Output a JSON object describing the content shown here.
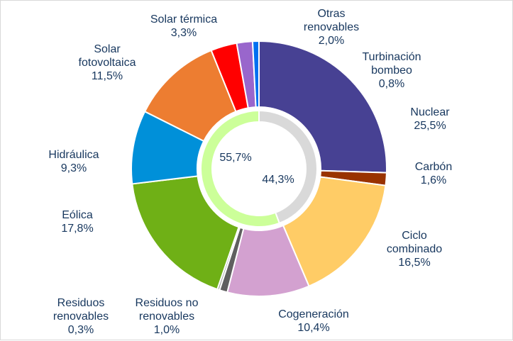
{
  "chart_data": [
    {
      "type": "pie",
      "style": "donut",
      "slices": [
        {
          "label_lines": [
            "Nuclear"
          ],
          "value": 25.5,
          "value_text": "25,5%",
          "color": "#474193"
        },
        {
          "label_lines": [
            "Carbón"
          ],
          "value": 1.6,
          "value_text": "1,6%",
          "color": "#993300"
        },
        {
          "label_lines": [
            "Ciclo",
            "combinado"
          ],
          "value": 16.5,
          "value_text": "16,5%",
          "color": "#ffcc66"
        },
        {
          "label_lines": [
            "Cogeneración"
          ],
          "value": 10.4,
          "value_text": "10,4%",
          "color": "#d3a1d0"
        },
        {
          "label_lines": [
            "Residuos no",
            "renovables"
          ],
          "value": 1.0,
          "value_text": "1,0%",
          "color": "#5f5f5f"
        },
        {
          "label_lines": [
            "Residuos",
            "renovables"
          ],
          "value": 0.3,
          "value_text": "0,3%",
          "color": "#a6a6a6"
        },
        {
          "label_lines": [
            "Eólica"
          ],
          "value": 17.8,
          "value_text": "17,8%",
          "color": "#6fb016"
        },
        {
          "label_lines": [
            "Hidráulica"
          ],
          "value": 9.3,
          "value_text": "9,3%",
          "color": "#0090d9"
        },
        {
          "label_lines": [
            "Solar",
            "fotovoltaica"
          ],
          "value": 11.5,
          "value_text": "11,5%",
          "color": "#ed7d31"
        },
        {
          "label_lines": [
            "Solar térmica"
          ],
          "value": 3.3,
          "value_text": "3,3%",
          "color": "#ff0000"
        },
        {
          "label_lines": [
            "Otras",
            "renovables"
          ],
          "value": 2.0,
          "value_text": "2,0%",
          "color": "#9966cc"
        },
        {
          "label_lines": [
            "Turbinación",
            "bombeo"
          ],
          "value": 0.8,
          "value_text": "0,8%",
          "color": "#0070f0"
        }
      ]
    },
    {
      "type": "pie",
      "style": "inner-ring",
      "slices": [
        {
          "value": 44.3,
          "value_text": "44,3%",
          "color": "#d9d9d9"
        },
        {
          "value": 55.7,
          "value_text": "55,7%",
          "color": "#ccff99"
        }
      ]
    }
  ]
}
